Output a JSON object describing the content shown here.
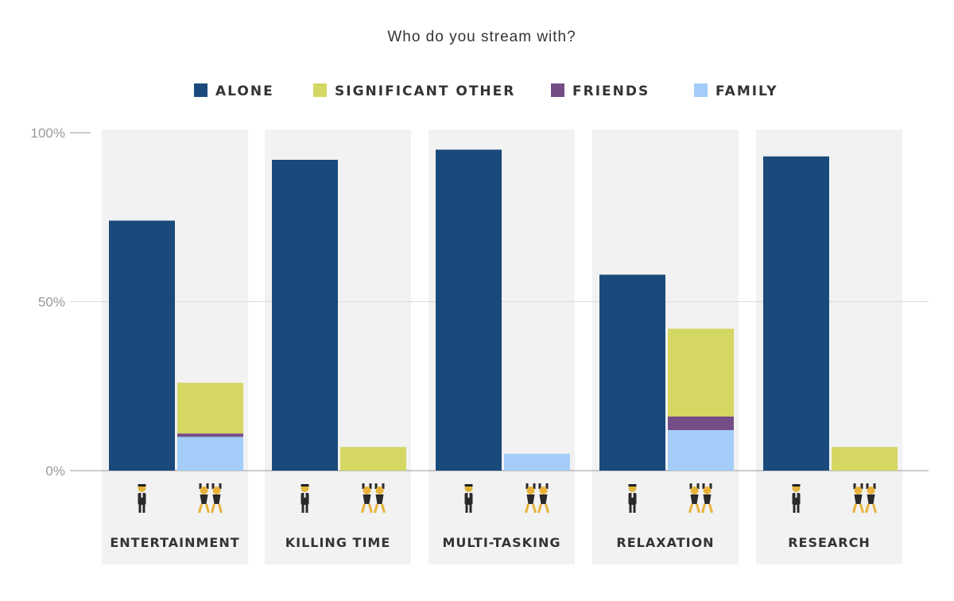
{
  "chart_data": {
    "type": "bar",
    "title": "Who do you stream with?",
    "categories": [
      "ENTERTAINMENT",
      "KILLING TIME",
      "MULTI-TASKING",
      "RELAXATION",
      "RESEARCH"
    ],
    "group_icons": [
      "person-icon",
      "pair-icon"
    ],
    "y_tick_labels": [
      "100%",
      "50%",
      "0%"
    ],
    "ylim": [
      0,
      100
    ],
    "grid": true,
    "legend_position": "top",
    "series": [
      {
        "name": "ALONE",
        "color": "#1a4a7c",
        "bar": "single",
        "values": [
          74,
          92,
          95,
          58,
          93
        ]
      },
      {
        "name": "FAMILY",
        "color": "#a3cdf8",
        "bar": "group",
        "values": [
          10,
          0,
          5,
          12,
          0
        ]
      },
      {
        "name": "FRIENDS",
        "color": "#744d87",
        "bar": "group",
        "values": [
          1,
          0,
          0,
          4,
          0
        ]
      },
      {
        "name": "SIGNIFICANT OTHER",
        "color": "#d4d762",
        "bar": "group",
        "values": [
          15,
          7,
          0,
          26,
          7
        ]
      }
    ],
    "legend_order": [
      "ALONE",
      "SIGNIFICANT OTHER",
      "FRIENDS",
      "FAMILY"
    ]
  }
}
